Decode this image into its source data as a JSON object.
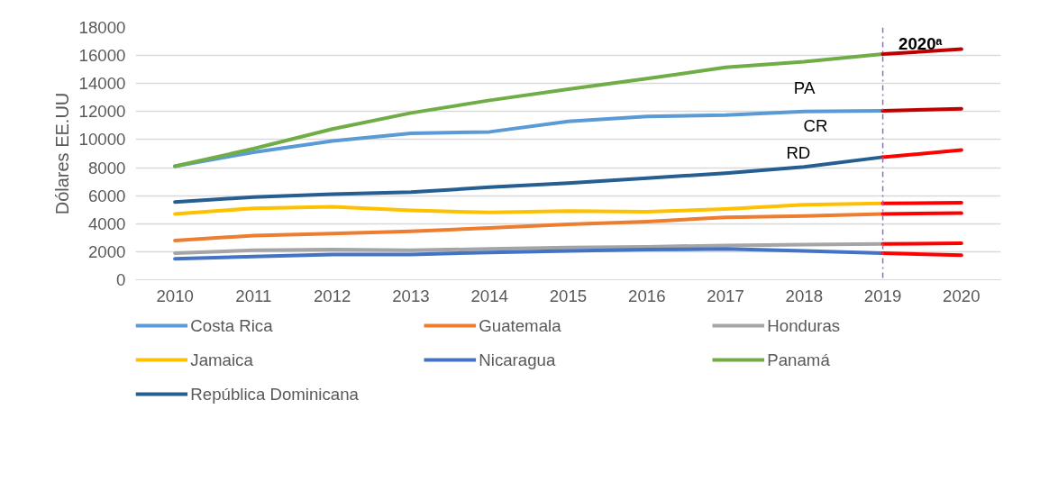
{
  "chart_data": {
    "type": "line",
    "ylabel": "Dólares EE.UU",
    "categories": [
      "2010",
      "2011",
      "2012",
      "2013",
      "2014",
      "2015",
      "2016",
      "2017",
      "2018",
      "2019",
      "2020"
    ],
    "ylim": [
      0,
      18000
    ],
    "yticks": [
      0,
      2000,
      4000,
      6000,
      8000,
      10000,
      12000,
      14000,
      16000,
      18000
    ],
    "grid": "y",
    "legend": "bottom",
    "line_style": "solid",
    "marker": "none",
    "series": [
      {
        "name": "Costa Rica",
        "color": "#5b9bd5",
        "values": [
          8100,
          9100,
          9900,
          10450,
          10550,
          11300,
          11650,
          11750,
          12000,
          12050,
          null
        ]
      },
      {
        "name": "Guatemala",
        "color": "#ed7d31",
        "values": [
          2800,
          3150,
          3300,
          3450,
          3700,
          3950,
          4150,
          4450,
          4550,
          4700,
          null
        ]
      },
      {
        "name": "Honduras",
        "color": "#a5a5a5",
        "values": [
          1900,
          2100,
          2150,
          2100,
          2200,
          2300,
          2350,
          2450,
          2500,
          2550,
          null
        ]
      },
      {
        "name": "Jamaica",
        "color": "#ffc000",
        "values": [
          4700,
          5100,
          5200,
          4950,
          4800,
          4900,
          4850,
          5050,
          5350,
          5450,
          null
        ]
      },
      {
        "name": "Nicaragua",
        "color": "#4472c4",
        "values": [
          1500,
          1650,
          1800,
          1800,
          1950,
          2050,
          2150,
          2200,
          2050,
          1900,
          null
        ]
      },
      {
        "name": "Panamá",
        "color": "#70ad47",
        "values": [
          8100,
          9350,
          10750,
          11900,
          12800,
          13600,
          14350,
          15150,
          15550,
          16100,
          null
        ]
      },
      {
        "name": "República Dominicana",
        "color": "#255e91",
        "values": [
          5550,
          5900,
          6100,
          6250,
          6600,
          6900,
          7250,
          7600,
          8050,
          8750,
          null
        ]
      },
      {
        "color": "#c00000",
        "values": [
          null,
          null,
          null,
          null,
          null,
          null,
          null,
          null,
          null,
          12050,
          12200
        ]
      },
      {
        "color": "#ff0000",
        "values": [
          null,
          null,
          null,
          null,
          null,
          null,
          null,
          null,
          null,
          4700,
          4750
        ]
      },
      {
        "color": "#ff0000",
        "values": [
          null,
          null,
          null,
          null,
          null,
          null,
          null,
          null,
          null,
          2550,
          2600
        ]
      },
      {
        "color": "#ff0000",
        "values": [
          null,
          null,
          null,
          null,
          null,
          null,
          null,
          null,
          null,
          5450,
          5500
        ]
      },
      {
        "color": "#ff0000",
        "values": [
          null,
          null,
          null,
          null,
          null,
          null,
          null,
          null,
          null,
          1900,
          1750
        ]
      },
      {
        "color": "#c00000",
        "values": [
          null,
          null,
          null,
          null,
          null,
          null,
          null,
          null,
          null,
          16100,
          16450
        ]
      },
      {
        "color": "#ff0000",
        "values": [
          null,
          null,
          null,
          null,
          null,
          null,
          null,
          null,
          null,
          8750,
          9250
        ]
      }
    ],
    "ref_lines": [
      {
        "axis": "x",
        "value": "2019",
        "label": "2020ᵃ",
        "color": "#9966cc",
        "line_style": "dashdot"
      }
    ],
    "annotations": [
      "PA",
      "CR",
      "RD"
    ]
  }
}
